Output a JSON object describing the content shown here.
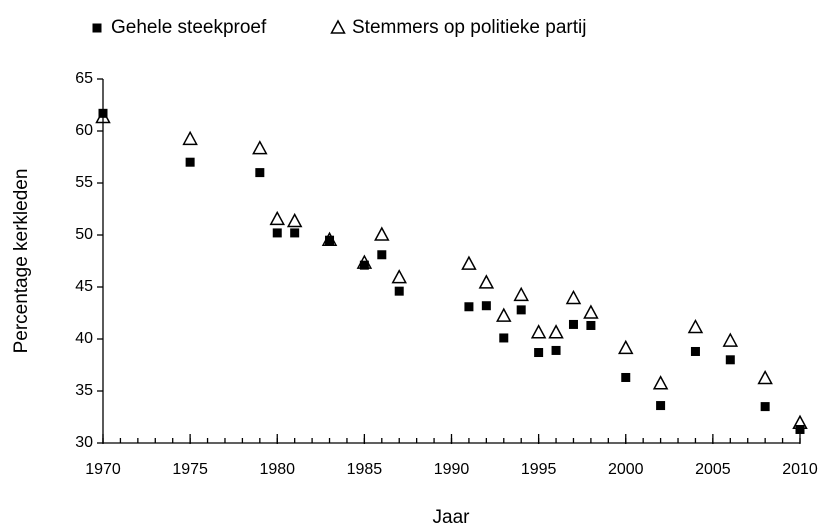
{
  "chart_data": {
    "type": "scatter",
    "xlabel": "Jaar",
    "ylabel": "Percentage kerkleden",
    "x": [
      1970,
      1975,
      1979,
      1980,
      1981,
      1983,
      1985,
      1986,
      1987,
      1991,
      1992,
      1993,
      1994,
      1995,
      1996,
      1997,
      1998,
      2000,
      2002,
      2004,
      2006,
      2008,
      2010
    ],
    "series": [
      {
        "name": "Gehele steekproef",
        "color": "#000000",
        "marker": "square",
        "values": [
          61.7,
          57.0,
          56.0,
          50.2,
          50.2,
          49.5,
          47.1,
          48.1,
          44.6,
          43.1,
          43.2,
          40.1,
          42.8,
          38.7,
          38.9,
          41.4,
          41.3,
          36.3,
          33.6,
          38.8,
          38.0,
          33.5,
          31.3
        ]
      },
      {
        "name": "Stemmers op politieke partij",
        "color": "#000000",
        "marker": "triangle",
        "values": [
          61.3,
          59.2,
          58.3,
          51.5,
          51.3,
          49.5,
          47.3,
          50.0,
          45.9,
          47.2,
          45.4,
          42.2,
          44.2,
          40.6,
          40.6,
          43.9,
          42.5,
          39.1,
          35.7,
          41.1,
          39.8,
          36.2,
          31.9
        ]
      }
    ],
    "xlim": [
      1970,
      2010
    ],
    "xticks": [
      1970,
      1975,
      1980,
      1985,
      1990,
      1995,
      2000,
      2005,
      2010
    ],
    "xminorticks": [
      1970,
      1971,
      1972,
      1973,
      1974,
      1975,
      1976,
      1977,
      1978,
      1979,
      1980,
      1981,
      1982,
      1983,
      1984,
      1985,
      1986,
      1987,
      1988,
      1989,
      1990,
      1991,
      1992,
      1993,
      1994,
      1995,
      1996,
      1997,
      1998,
      1999,
      2000,
      2001,
      2002,
      2003,
      2004,
      2005,
      2006,
      2007,
      2008,
      2009,
      2010
    ],
    "ylim": [
      30,
      65
    ],
    "yticks": [
      30,
      35,
      40,
      45,
      50,
      55,
      60,
      65
    ],
    "grid": false,
    "legend": "top"
  }
}
